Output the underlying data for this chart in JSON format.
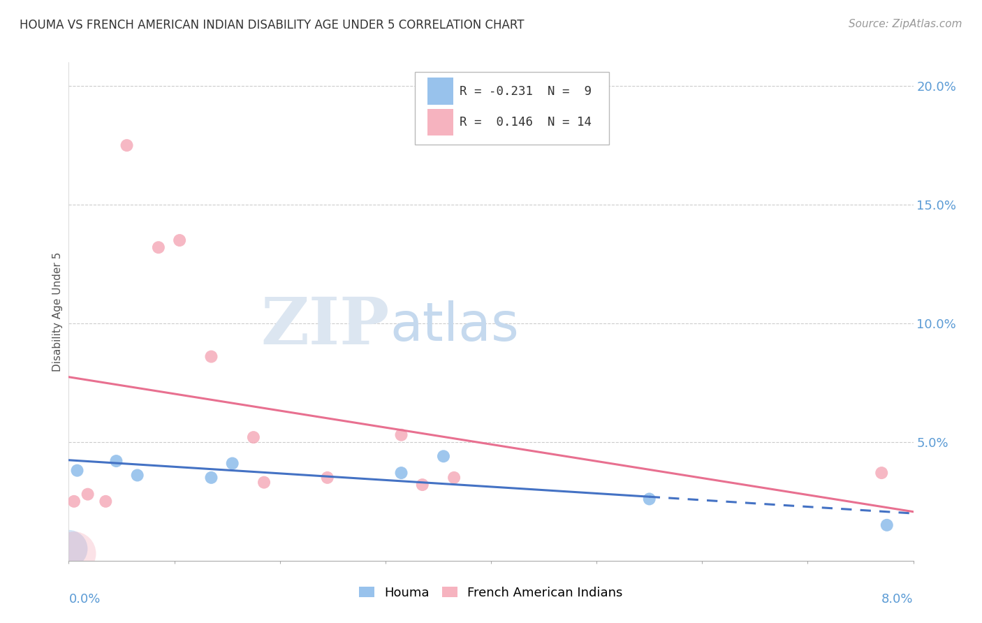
{
  "title": "HOUMA VS FRENCH AMERICAN INDIAN DISABILITY AGE UNDER 5 CORRELATION CHART",
  "source": "Source: ZipAtlas.com",
  "ylabel": "Disability Age Under 5",
  "xlim": [
    0.0,
    8.0
  ],
  "ylim": [
    0.0,
    21.0
  ],
  "yticks": [
    5.0,
    10.0,
    15.0,
    20.0
  ],
  "houma_R": -0.231,
  "houma_N": 9,
  "french_R": 0.146,
  "french_N": 14,
  "houma_color": "#7EB3E8",
  "french_color": "#F4A0B0",
  "houma_line_color": "#4472C4",
  "french_line_color": "#E87090",
  "watermark_zip": "ZIP",
  "watermark_atlas": "atlas",
  "houma_x": [
    0.08,
    0.45,
    0.65,
    1.35,
    1.55,
    3.15,
    3.55,
    5.5,
    7.75
  ],
  "houma_y": [
    3.8,
    4.2,
    3.6,
    3.5,
    4.1,
    3.7,
    4.4,
    2.6,
    1.5
  ],
  "french_x": [
    0.05,
    0.18,
    0.35,
    0.55,
    0.85,
    1.05,
    1.35,
    1.75,
    1.85,
    2.45,
    3.15,
    3.35,
    3.65,
    7.7
  ],
  "french_y": [
    2.5,
    2.8,
    2.5,
    17.5,
    13.2,
    13.5,
    8.6,
    5.2,
    3.3,
    3.5,
    5.3,
    3.2,
    3.5,
    3.7
  ],
  "houma_solid_end": 5.5,
  "legend_R_houma": "R = -0.231",
  "legend_N_houma": "N =  9",
  "legend_R_french": "R =  0.146",
  "legend_N_french": "N = 14"
}
